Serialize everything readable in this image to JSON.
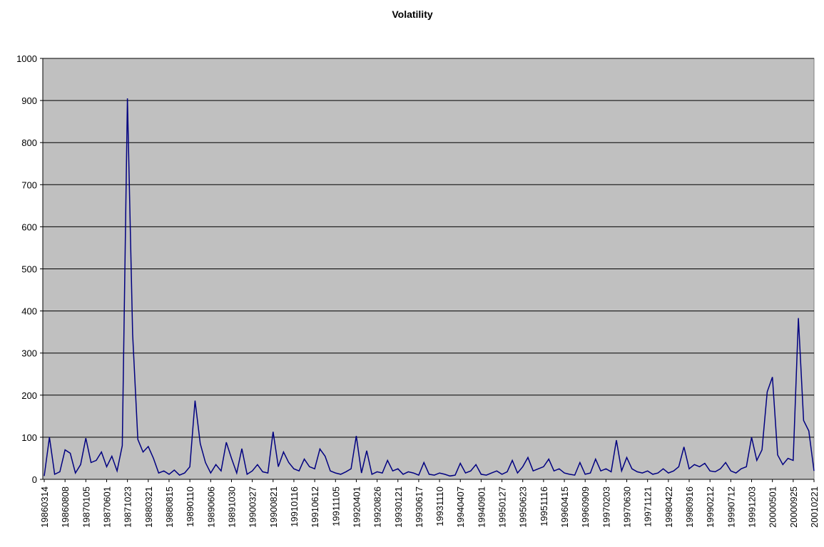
{
  "chart_data": {
    "type": "line",
    "title": "Volatility",
    "categories": [
      "19860314",
      null,
      null,
      null,
      "19860808",
      null,
      null,
      null,
      "19870105",
      null,
      null,
      null,
      "19870601",
      null,
      null,
      null,
      "19871023",
      null,
      null,
      null,
      "19880321",
      null,
      null,
      null,
      "19880815",
      null,
      null,
      null,
      "19890110",
      null,
      null,
      null,
      "19890606",
      null,
      null,
      null,
      "19891030",
      null,
      null,
      null,
      "19900327",
      null,
      null,
      null,
      "19900821",
      null,
      null,
      null,
      "19910116",
      null,
      null,
      null,
      "19910612",
      null,
      null,
      null,
      "19911105",
      null,
      null,
      null,
      "19920401",
      null,
      null,
      null,
      "19920826",
      null,
      null,
      null,
      "19930121",
      null,
      null,
      null,
      "19930617",
      null,
      null,
      null,
      "19931110",
      null,
      null,
      null,
      "19940407",
      null,
      null,
      null,
      "19940901",
      null,
      null,
      null,
      "19950127",
      null,
      null,
      null,
      "19950623",
      null,
      null,
      null,
      "19951116",
      null,
      null,
      null,
      "19960415",
      null,
      null,
      null,
      "19960909",
      null,
      null,
      null,
      "19970203",
      null,
      null,
      null,
      "19970630",
      null,
      null,
      null,
      "19971121",
      null,
      null,
      null,
      "19980422",
      null,
      null,
      null,
      "19980916",
      null,
      null,
      null,
      "19990212",
      null,
      null,
      null,
      "19990712",
      null,
      null,
      null,
      "19991203",
      null,
      null,
      null,
      "20000501",
      null,
      null,
      null,
      "20000925",
      null,
      null,
      null,
      "20010221"
    ],
    "series": [
      {
        "name": "Volatility",
        "color": "#000080",
        "values": [
          8,
          100,
          12,
          18,
          70,
          62,
          15,
          35,
          98,
          40,
          45,
          65,
          30,
          55,
          20,
          80,
          905,
          345,
          95,
          65,
          78,
          50,
          15,
          20,
          12,
          22,
          10,
          15,
          30,
          187,
          85,
          40,
          15,
          35,
          20,
          88,
          50,
          15,
          73,
          12,
          20,
          35,
          18,
          15,
          113,
          30,
          65,
          40,
          25,
          20,
          48,
          30,
          25,
          72,
          55,
          20,
          15,
          12,
          18,
          25,
          103,
          15,
          68,
          12,
          18,
          15,
          45,
          20,
          25,
          12,
          18,
          15,
          10,
          40,
          12,
          10,
          15,
          12,
          8,
          10,
          38,
          15,
          20,
          35,
          12,
          10,
          15,
          20,
          12,
          18,
          45,
          15,
          30,
          52,
          20,
          25,
          30,
          48,
          20,
          25,
          15,
          12,
          10,
          40,
          12,
          15,
          48,
          20,
          25,
          18,
          93,
          20,
          52,
          25,
          18,
          15,
          20,
          12,
          15,
          25,
          15,
          20,
          30,
          77,
          25,
          35,
          30,
          38,
          20,
          18,
          25,
          40,
          20,
          15,
          25,
          30,
          100,
          45,
          70,
          208,
          243,
          58,
          35,
          50,
          45,
          383,
          140,
          115,
          20
        ]
      }
    ],
    "ylim": [
      0,
      1000
    ],
    "yticks": [
      0,
      100,
      200,
      300,
      400,
      500,
      600,
      700,
      800,
      900,
      1000
    ],
    "grid": true
  }
}
